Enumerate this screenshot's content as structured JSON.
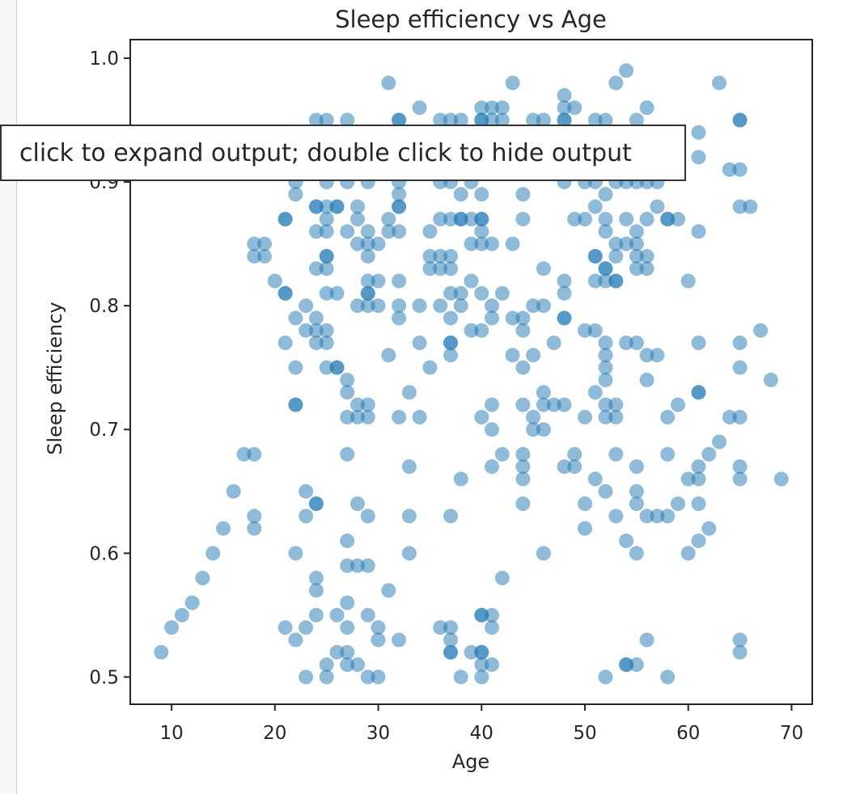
{
  "output_tooltip": "click to expand output; double click to hide output",
  "chart_data": {
    "type": "scatter",
    "title": "Sleep efficiency vs Age",
    "xlabel": "Age",
    "ylabel": "Sleep efficiency",
    "xlim": [
      6,
      72
    ],
    "ylim": [
      0.478,
      1.015
    ],
    "xticks": [
      10,
      20,
      30,
      40,
      50,
      60,
      70
    ],
    "yticks": [
      0.5,
      0.6,
      0.7,
      0.8,
      0.9,
      1.0
    ],
    "ytick_labels": [
      "0.5",
      "0.6",
      "0.7",
      "0.8",
      "0.9",
      "1.0"
    ],
    "grid": false,
    "marker_color": "#1f77b4",
    "marker_alpha": 0.5,
    "points": [
      [
        9,
        0.52
      ],
      [
        10,
        0.54
      ],
      [
        11,
        0.55
      ],
      [
        12,
        0.56
      ],
      [
        13,
        0.58
      ],
      [
        14,
        0.6
      ],
      [
        15,
        0.62
      ],
      [
        16,
        0.65
      ],
      [
        17,
        0.68
      ],
      [
        18,
        0.68
      ],
      [
        18,
        0.63
      ],
      [
        18,
        0.62
      ],
      [
        18,
        0.85
      ],
      [
        18,
        0.84
      ],
      [
        19,
        0.85
      ],
      [
        19,
        0.84
      ],
      [
        20,
        0.82
      ],
      [
        21,
        0.81
      ],
      [
        21,
        0.81
      ],
      [
        21,
        0.87
      ],
      [
        21,
        0.87
      ],
      [
        21,
        0.77
      ],
      [
        21,
        0.54
      ],
      [
        22,
        0.9
      ],
      [
        22,
        0.89
      ],
      [
        22,
        0.79
      ],
      [
        22,
        0.75
      ],
      [
        22,
        0.72
      ],
      [
        22,
        0.72
      ],
      [
        22,
        0.6
      ],
      [
        22,
        0.53
      ],
      [
        23,
        0.8
      ],
      [
        23,
        0.78
      ],
      [
        23,
        0.65
      ],
      [
        23,
        0.63
      ],
      [
        23,
        0.54
      ],
      [
        23,
        0.5
      ],
      [
        24,
        0.95
      ],
      [
        24,
        0.93
      ],
      [
        24,
        0.91
      ],
      [
        24,
        0.88
      ],
      [
        24,
        0.88
      ],
      [
        24,
        0.86
      ],
      [
        24,
        0.83
      ],
      [
        24,
        0.79
      ],
      [
        24,
        0.78
      ],
      [
        24,
        0.77
      ],
      [
        24,
        0.64
      ],
      [
        24,
        0.64
      ],
      [
        24,
        0.58
      ],
      [
        24,
        0.57
      ],
      [
        24,
        0.55
      ],
      [
        25,
        0.95
      ],
      [
        25,
        0.9
      ],
      [
        25,
        0.88
      ],
      [
        25,
        0.87
      ],
      [
        25,
        0.86
      ],
      [
        25,
        0.84
      ],
      [
        25,
        0.84
      ],
      [
        25,
        0.83
      ],
      [
        25,
        0.81
      ],
      [
        25,
        0.78
      ],
      [
        25,
        0.77
      ],
      [
        25,
        0.75
      ],
      [
        25,
        0.51
      ],
      [
        25,
        0.5
      ],
      [
        26,
        0.93
      ],
      [
        26,
        0.88
      ],
      [
        26,
        0.88
      ],
      [
        26,
        0.81
      ],
      [
        26,
        0.75
      ],
      [
        26,
        0.75
      ],
      [
        26,
        0.55
      ],
      [
        26,
        0.52
      ],
      [
        27,
        0.95
      ],
      [
        27,
        0.92
      ],
      [
        27,
        0.9
      ],
      [
        27,
        0.86
      ],
      [
        27,
        0.74
      ],
      [
        27,
        0.73
      ],
      [
        27,
        0.71
      ],
      [
        27,
        0.68
      ],
      [
        27,
        0.61
      ],
      [
        27,
        0.59
      ],
      [
        27,
        0.56
      ],
      [
        27,
        0.54
      ],
      [
        27,
        0.52
      ],
      [
        27,
        0.51
      ],
      [
        28,
        0.92
      ],
      [
        28,
        0.88
      ],
      [
        28,
        0.87
      ],
      [
        28,
        0.85
      ],
      [
        28,
        0.8
      ],
      [
        28,
        0.72
      ],
      [
        28,
        0.71
      ],
      [
        28,
        0.64
      ],
      [
        28,
        0.59
      ],
      [
        28,
        0.51
      ],
      [
        29,
        0.92
      ],
      [
        29,
        0.9
      ],
      [
        29,
        0.86
      ],
      [
        29,
        0.85
      ],
      [
        29,
        0.84
      ],
      [
        29,
        0.82
      ],
      [
        29,
        0.81
      ],
      [
        29,
        0.81
      ],
      [
        29,
        0.8
      ],
      [
        29,
        0.72
      ],
      [
        29,
        0.71
      ],
      [
        29,
        0.63
      ],
      [
        29,
        0.59
      ],
      [
        29,
        0.55
      ],
      [
        29,
        0.5
      ],
      [
        30,
        0.85
      ],
      [
        30,
        0.82
      ],
      [
        30,
        0.8
      ],
      [
        30,
        0.54
      ],
      [
        30,
        0.53
      ],
      [
        30,
        0.5
      ],
      [
        31,
        0.98
      ],
      [
        31,
        0.87
      ],
      [
        31,
        0.86
      ],
      [
        31,
        0.76
      ],
      [
        31,
        0.57
      ],
      [
        32,
        0.95
      ],
      [
        32,
        0.95
      ],
      [
        32,
        0.92
      ],
      [
        32,
        0.9
      ],
      [
        32,
        0.89
      ],
      [
        32,
        0.88
      ],
      [
        32,
        0.88
      ],
      [
        32,
        0.86
      ],
      [
        32,
        0.82
      ],
      [
        32,
        0.8
      ],
      [
        32,
        0.79
      ],
      [
        32,
        0.71
      ],
      [
        32,
        0.53
      ],
      [
        33,
        0.73
      ],
      [
        33,
        0.67
      ],
      [
        33,
        0.63
      ],
      [
        33,
        0.6
      ],
      [
        34,
        0.96
      ],
      [
        34,
        0.8
      ],
      [
        34,
        0.77
      ],
      [
        34,
        0.71
      ],
      [
        35,
        0.86
      ],
      [
        35,
        0.84
      ],
      [
        35,
        0.83
      ],
      [
        35,
        0.75
      ],
      [
        36,
        0.95
      ],
      [
        36,
        0.9
      ],
      [
        36,
        0.87
      ],
      [
        36,
        0.84
      ],
      [
        36,
        0.83
      ],
      [
        36,
        0.8
      ],
      [
        36,
        0.54
      ],
      [
        37,
        0.95
      ],
      [
        37,
        0.9
      ],
      [
        37,
        0.87
      ],
      [
        37,
        0.84
      ],
      [
        37,
        0.83
      ],
      [
        37,
        0.81
      ],
      [
        37,
        0.79
      ],
      [
        37,
        0.77
      ],
      [
        37,
        0.77
      ],
      [
        37,
        0.76
      ],
      [
        37,
        0.63
      ],
      [
        37,
        0.54
      ],
      [
        37,
        0.53
      ],
      [
        37,
        0.52
      ],
      [
        37,
        0.52
      ],
      [
        38,
        0.95
      ],
      [
        38,
        0.89
      ],
      [
        38,
        0.87
      ],
      [
        38,
        0.87
      ],
      [
        38,
        0.81
      ],
      [
        38,
        0.8
      ],
      [
        38,
        0.66
      ],
      [
        38,
        0.5
      ],
      [
        39,
        0.9
      ],
      [
        39,
        0.87
      ],
      [
        39,
        0.85
      ],
      [
        39,
        0.82
      ],
      [
        39,
        0.78
      ],
      [
        39,
        0.52
      ],
      [
        40,
        0.96
      ],
      [
        40,
        0.95
      ],
      [
        40,
        0.95
      ],
      [
        40,
        0.89
      ],
      [
        40,
        0.87
      ],
      [
        40,
        0.87
      ],
      [
        40,
        0.86
      ],
      [
        40,
        0.85
      ],
      [
        40,
        0.81
      ],
      [
        40,
        0.78
      ],
      [
        40,
        0.71
      ],
      [
        40,
        0.55
      ],
      [
        40,
        0.55
      ],
      [
        40,
        0.52
      ],
      [
        40,
        0.52
      ],
      [
        40,
        0.51
      ],
      [
        40,
        0.5
      ],
      [
        41,
        0.96
      ],
      [
        41,
        0.95
      ],
      [
        41,
        0.85
      ],
      [
        41,
        0.8
      ],
      [
        41,
        0.79
      ],
      [
        41,
        0.72
      ],
      [
        41,
        0.7
      ],
      [
        41,
        0.67
      ],
      [
        41,
        0.55
      ],
      [
        41,
        0.54
      ],
      [
        41,
        0.51
      ],
      [
        42,
        0.96
      ],
      [
        42,
        0.95
      ],
      [
        42,
        0.92
      ],
      [
        42,
        0.81
      ],
      [
        42,
        0.68
      ],
      [
        42,
        0.58
      ],
      [
        43,
        0.98
      ],
      [
        43,
        0.85
      ],
      [
        43,
        0.79
      ],
      [
        43,
        0.76
      ],
      [
        44,
        0.89
      ],
      [
        44,
        0.87
      ],
      [
        44,
        0.79
      ],
      [
        44,
        0.78
      ],
      [
        44,
        0.75
      ],
      [
        44,
        0.72
      ],
      [
        44,
        0.68
      ],
      [
        44,
        0.67
      ],
      [
        44,
        0.66
      ],
      [
        44,
        0.64
      ],
      [
        45,
        0.95
      ],
      [
        45,
        0.8
      ],
      [
        45,
        0.76
      ],
      [
        45,
        0.71
      ],
      [
        45,
        0.7
      ],
      [
        46,
        0.95
      ],
      [
        46,
        0.83
      ],
      [
        46,
        0.8
      ],
      [
        46,
        0.73
      ],
      [
        46,
        0.72
      ],
      [
        46,
        0.7
      ],
      [
        46,
        0.6
      ],
      [
        47,
        0.77
      ],
      [
        47,
        0.72
      ],
      [
        48,
        0.97
      ],
      [
        48,
        0.96
      ],
      [
        48,
        0.95
      ],
      [
        48,
        0.95
      ],
      [
        48,
        0.92
      ],
      [
        48,
        0.9
      ],
      [
        48,
        0.82
      ],
      [
        48,
        0.81
      ],
      [
        48,
        0.79
      ],
      [
        48,
        0.79
      ],
      [
        48,
        0.72
      ],
      [
        48,
        0.67
      ],
      [
        49,
        0.96
      ],
      [
        49,
        0.87
      ],
      [
        49,
        0.68
      ],
      [
        49,
        0.67
      ],
      [
        50,
        0.92
      ],
      [
        50,
        0.9
      ],
      [
        50,
        0.87
      ],
      [
        50,
        0.78
      ],
      [
        50,
        0.71
      ],
      [
        50,
        0.64
      ],
      [
        50,
        0.62
      ],
      [
        51,
        0.95
      ],
      [
        51,
        0.9
      ],
      [
        51,
        0.88
      ],
      [
        51,
        0.84
      ],
      [
        51,
        0.84
      ],
      [
        51,
        0.82
      ],
      [
        51,
        0.78
      ],
      [
        51,
        0.73
      ],
      [
        51,
        0.66
      ],
      [
        52,
        0.95
      ],
      [
        52,
        0.91
      ],
      [
        52,
        0.89
      ],
      [
        52,
        0.87
      ],
      [
        52,
        0.86
      ],
      [
        52,
        0.83
      ],
      [
        52,
        0.83
      ],
      [
        52,
        0.82
      ],
      [
        52,
        0.77
      ],
      [
        52,
        0.76
      ],
      [
        52,
        0.75
      ],
      [
        52,
        0.74
      ],
      [
        52,
        0.72
      ],
      [
        52,
        0.71
      ],
      [
        52,
        0.65
      ],
      [
        52,
        0.5
      ],
      [
        53,
        0.98
      ],
      [
        53,
        0.92
      ],
      [
        53,
        0.92
      ],
      [
        53,
        0.9
      ],
      [
        53,
        0.85
      ],
      [
        53,
        0.84
      ],
      [
        53,
        0.82
      ],
      [
        53,
        0.82
      ],
      [
        53,
        0.72
      ],
      [
        53,
        0.71
      ],
      [
        53,
        0.68
      ],
      [
        53,
        0.63
      ],
      [
        54,
        0.99
      ],
      [
        54,
        0.9
      ],
      [
        54,
        0.87
      ],
      [
        54,
        0.85
      ],
      [
        54,
        0.77
      ],
      [
        54,
        0.61
      ],
      [
        54,
        0.51
      ],
      [
        54,
        0.51
      ],
      [
        55,
        0.95
      ],
      [
        55,
        0.9
      ],
      [
        55,
        0.86
      ],
      [
        55,
        0.85
      ],
      [
        55,
        0.84
      ],
      [
        55,
        0.83
      ],
      [
        55,
        0.77
      ],
      [
        55,
        0.67
      ],
      [
        55,
        0.65
      ],
      [
        55,
        0.64
      ],
      [
        55,
        0.6
      ],
      [
        55,
        0.51
      ],
      [
        56,
        0.96
      ],
      [
        56,
        0.9
      ],
      [
        56,
        0.87
      ],
      [
        56,
        0.84
      ],
      [
        56,
        0.83
      ],
      [
        56,
        0.76
      ],
      [
        56,
        0.74
      ],
      [
        56,
        0.63
      ],
      [
        56,
        0.53
      ],
      [
        57,
        0.9
      ],
      [
        57,
        0.88
      ],
      [
        57,
        0.76
      ],
      [
        57,
        0.63
      ],
      [
        58,
        0.87
      ],
      [
        58,
        0.87
      ],
      [
        58,
        0.71
      ],
      [
        58,
        0.68
      ],
      [
        58,
        0.63
      ],
      [
        58,
        0.5
      ],
      [
        59,
        0.87
      ],
      [
        59,
        0.72
      ],
      [
        59,
        0.64
      ],
      [
        60,
        0.82
      ],
      [
        60,
        0.66
      ],
      [
        60,
        0.6
      ],
      [
        61,
        0.94
      ],
      [
        61,
        0.92
      ],
      [
        61,
        0.86
      ],
      [
        61,
        0.77
      ],
      [
        61,
        0.73
      ],
      [
        61,
        0.73
      ],
      [
        61,
        0.67
      ],
      [
        61,
        0.66
      ],
      [
        61,
        0.64
      ],
      [
        61,
        0.61
      ],
      [
        62,
        0.68
      ],
      [
        62,
        0.62
      ],
      [
        63,
        0.98
      ],
      [
        63,
        0.69
      ],
      [
        64,
        0.91
      ],
      [
        64,
        0.71
      ],
      [
        65,
        0.95
      ],
      [
        65,
        0.95
      ],
      [
        65,
        0.91
      ],
      [
        65,
        0.88
      ],
      [
        65,
        0.77
      ],
      [
        65,
        0.75
      ],
      [
        65,
        0.71
      ],
      [
        65,
        0.67
      ],
      [
        65,
        0.66
      ],
      [
        65,
        0.53
      ],
      [
        65,
        0.52
      ],
      [
        66,
        0.88
      ],
      [
        67,
        0.78
      ],
      [
        68,
        0.74
      ],
      [
        69,
        0.66
      ]
    ]
  }
}
